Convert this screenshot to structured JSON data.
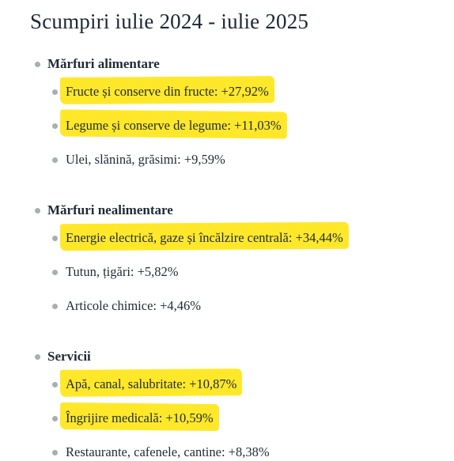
{
  "header": {
    "title": "Scumpiri iulie 2024 - iulie 2025"
  },
  "sections": [
    {
      "heading": "Mărfuri alimentare",
      "items": [
        {
          "text": "Fructe și conserve din fructe: +27,92%",
          "highlight": true
        },
        {
          "text": "Legume și conserve de legume: +11,03%",
          "highlight": true
        },
        {
          "text": "Ulei, slănină, grăsimi: +9,59%",
          "highlight": false
        }
      ]
    },
    {
      "heading": "Mărfuri nealimentare",
      "items": [
        {
          "text": "Energie electrică, gaze și încălzire centrală: +34,44%",
          "highlight": true
        },
        {
          "text": "Tutun, țigări: +5,82%",
          "highlight": false
        },
        {
          "text": "Articole chimice: +4,46%",
          "highlight": false
        }
      ]
    },
    {
      "heading": "Servicii",
      "items": [
        {
          "text": "Apă, canal, salubritate: +10,87%",
          "highlight": true
        },
        {
          "text": "Îngrijire medicală: +10,59%",
          "highlight": true
        },
        {
          "text": "Restaurante, cafenele, cantine: +8,38%",
          "highlight": false
        }
      ]
    }
  ],
  "highlight_color": "#ffe82a"
}
